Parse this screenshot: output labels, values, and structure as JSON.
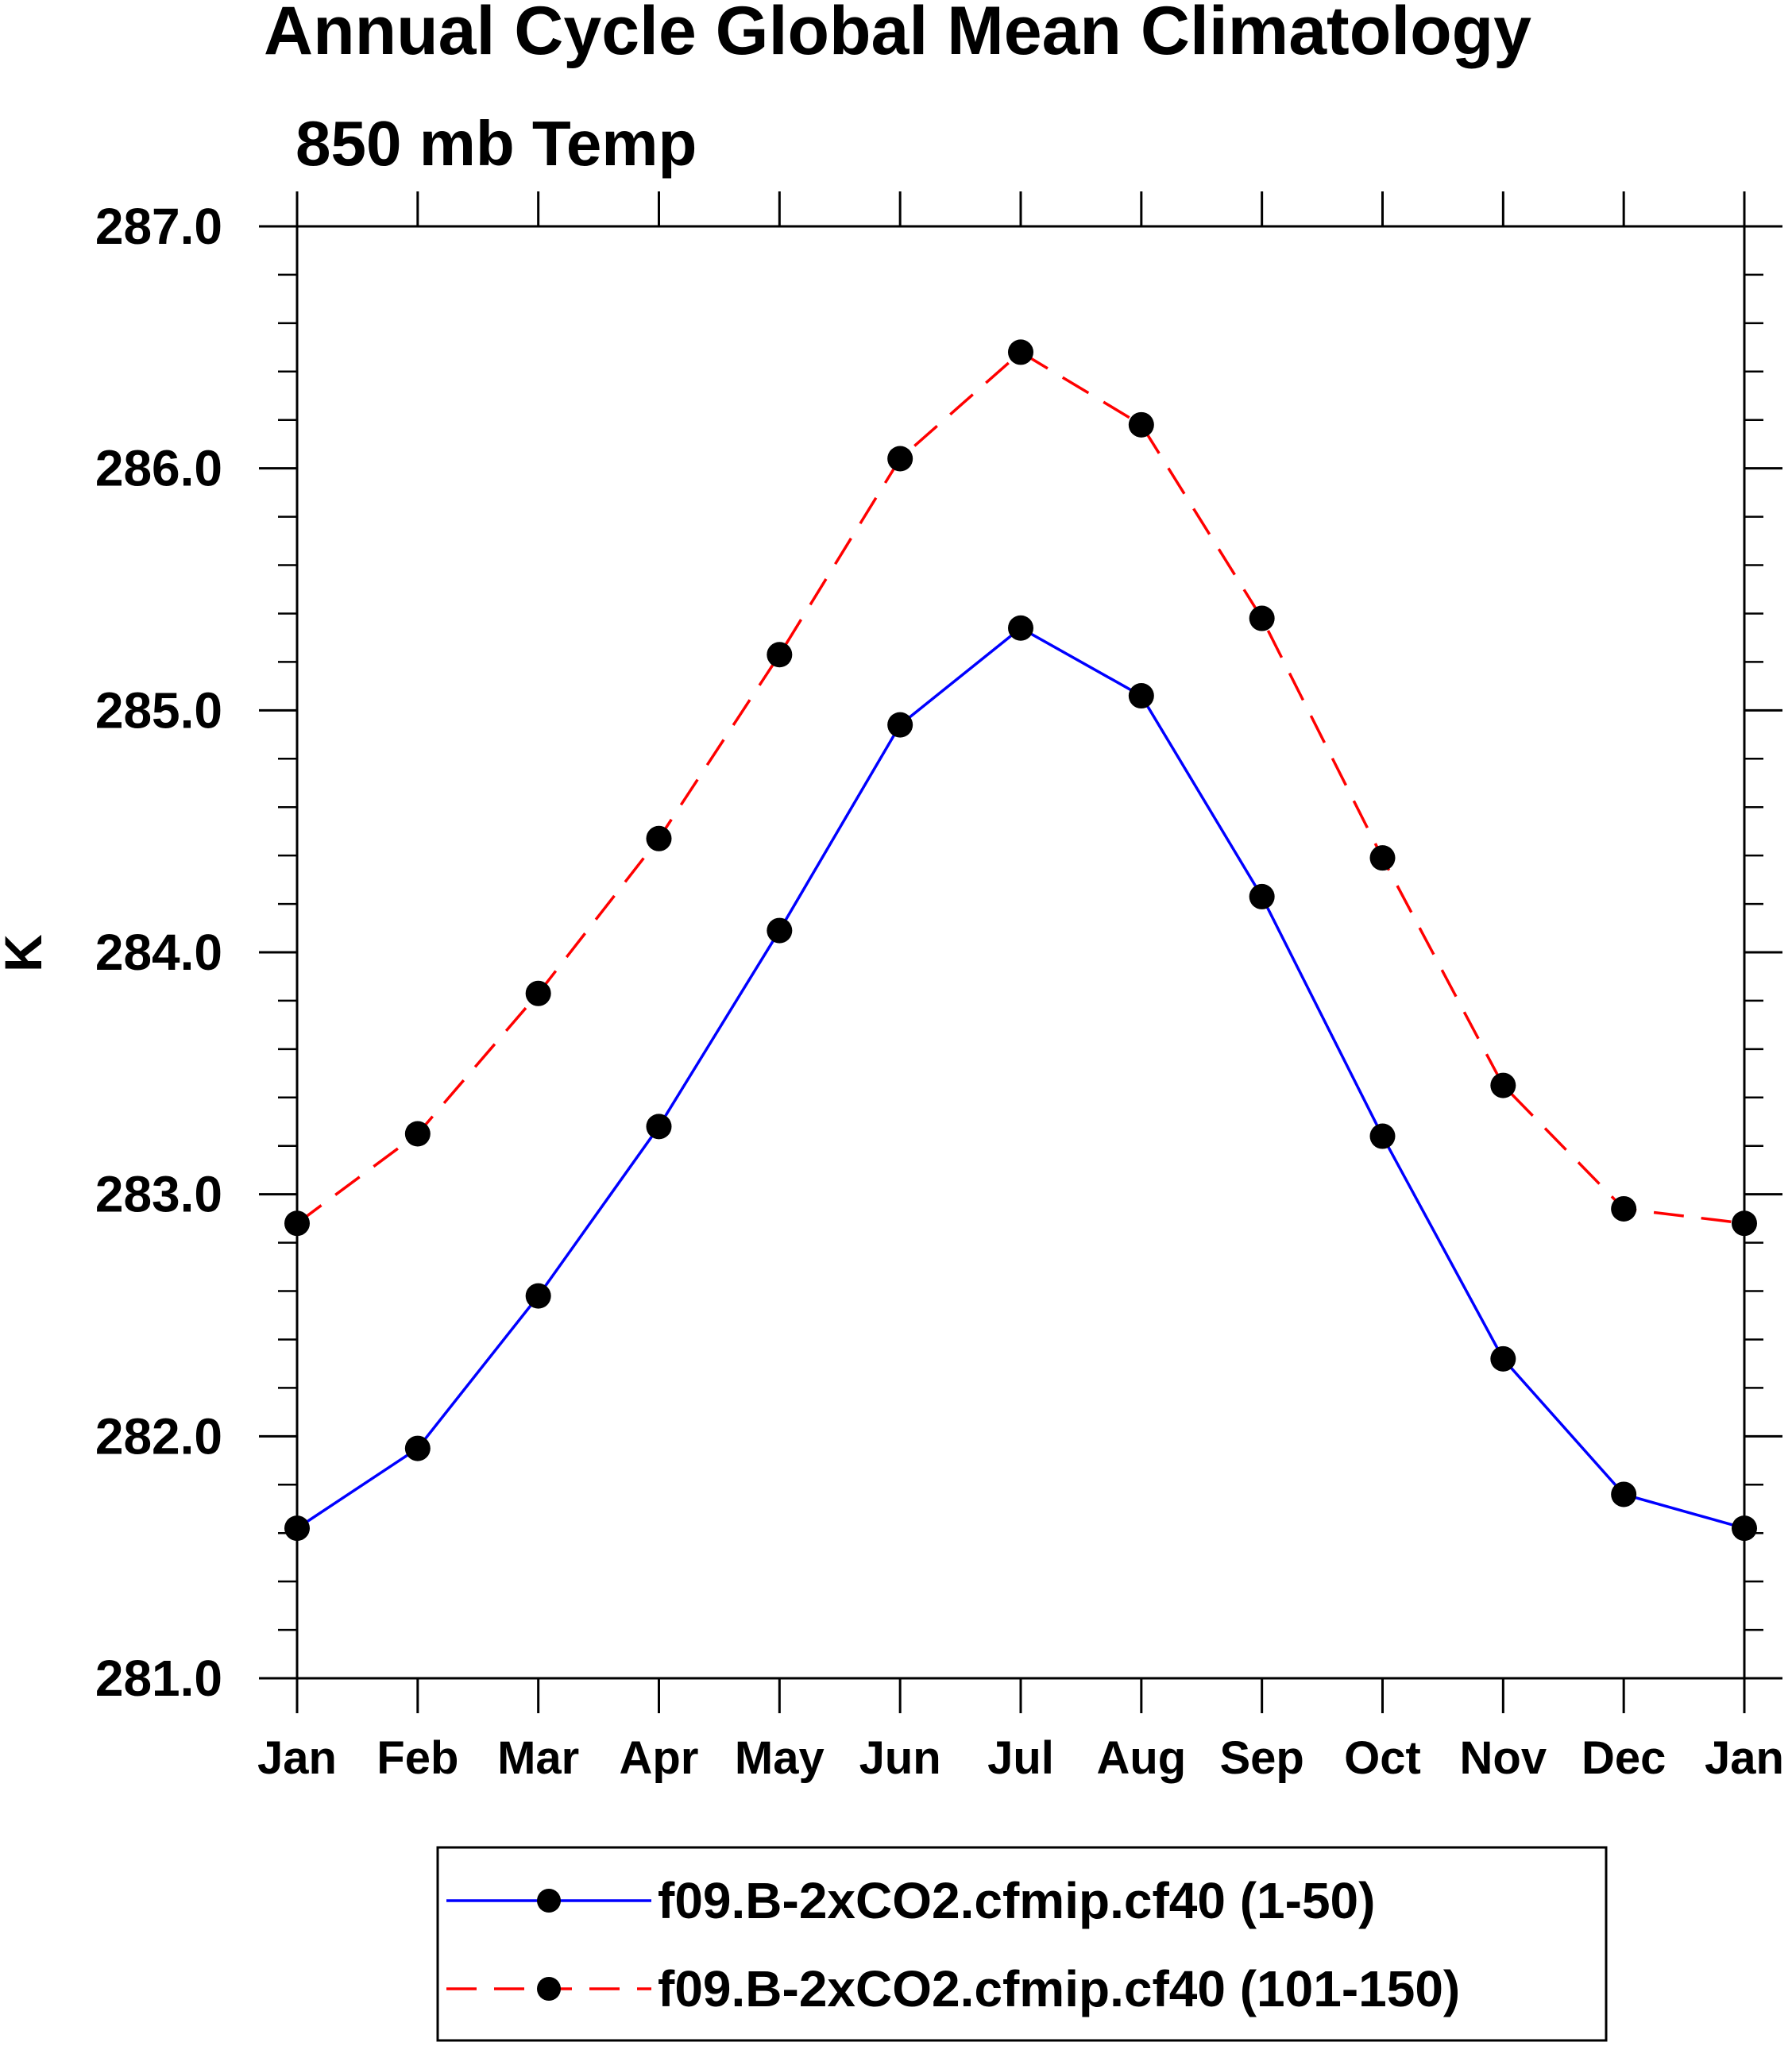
{
  "chart_data": {
    "type": "line",
    "title": "Annual Cycle Global Mean Climatology",
    "subtitle": "850 mb Temp",
    "ylabel": "K",
    "xlabel": "",
    "categories": [
      "Jan",
      "Feb",
      "Mar",
      "Apr",
      "May",
      "Jun",
      "Jul",
      "Aug",
      "Sep",
      "Oct",
      "Nov",
      "Dec",
      "Jan"
    ],
    "ylim": [
      281.0,
      287.0
    ],
    "yticks": [
      "281.0",
      "282.0",
      "283.0",
      "284.0",
      "285.0",
      "286.0",
      "287.0"
    ],
    "grid": false,
    "legend_position": "bottom",
    "series": [
      {
        "name": "f09.B-2xCO2.cfmip.cf40 (1-50)",
        "color": "#0000ff",
        "line_style": "solid",
        "marker": "filled-circle",
        "values": [
          281.62,
          281.95,
          282.58,
          283.28,
          284.09,
          284.94,
          285.34,
          285.06,
          284.23,
          283.24,
          282.32,
          281.76,
          281.62
        ]
      },
      {
        "name": "f09.B-2xCO2.cfmip.cf40 (101-150)",
        "color": "#ff0000",
        "line_style": "dashed",
        "marker": "filled-circle",
        "values": [
          282.88,
          283.25,
          283.83,
          284.47,
          285.23,
          286.04,
          286.48,
          286.18,
          285.38,
          284.39,
          283.45,
          282.94,
          282.88
        ]
      }
    ]
  }
}
